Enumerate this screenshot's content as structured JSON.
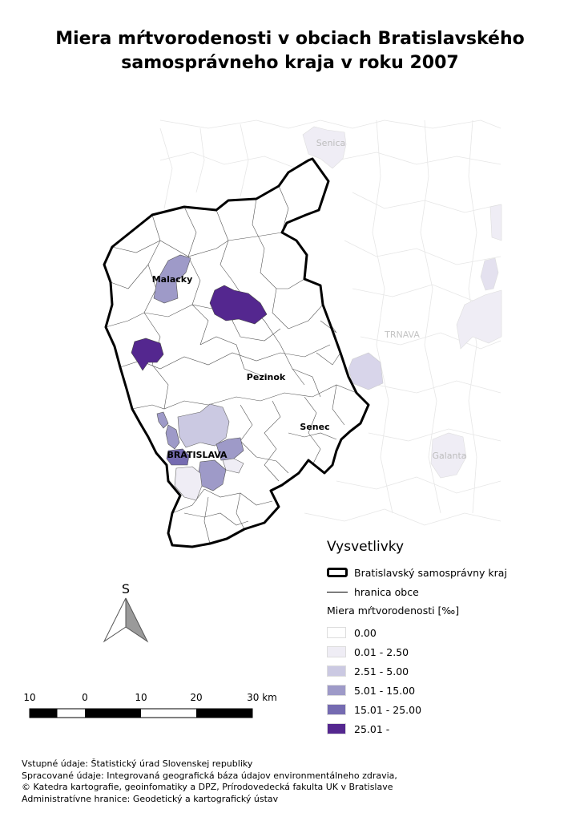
{
  "map": {
    "title_line1": "Miera mŕtvorodenosti v obciach Bratislavského",
    "title_line2": "samosprávneho kraja v roku 2007",
    "labels": {
      "senica": "Senica",
      "trnava": "TRNAVA",
      "galanta": "Galanta",
      "malacky": "Malacky",
      "pezinok": "Pezinok",
      "senec": "Senec",
      "bratislava": "BRATISLAVA"
    },
    "north_arrow_label": "S",
    "scale_bar": {
      "ticks": [
        "10",
        "0",
        "10",
        "20",
        "30 km"
      ]
    },
    "colors": {
      "c0": "#ffffff",
      "c1": "#efedf5",
      "c2": "#cbc9e2",
      "c3": "#9e9ac8",
      "c4": "#756bb1",
      "c5": "#54278f"
    }
  },
  "legend": {
    "title": "Vysvetlivky",
    "region_label": "Bratislavský samosprávny kraj",
    "boundary_label": "hranica obce",
    "subtitle": "Miera mŕtvorodenosti [‰]",
    "classes": [
      {
        "label": "0.00",
        "color": "#ffffff"
      },
      {
        "label": "0.01 - 2.50",
        "color": "#efedf5"
      },
      {
        "label": "2.51 - 5.00",
        "color": "#cbc9e2"
      },
      {
        "label": "5.01 - 15.00",
        "color": "#9e9ac8"
      },
      {
        "label": "15.01 - 25.00",
        "color": "#756bb1"
      },
      {
        "label": "25.01 -",
        "color": "#54278f"
      }
    ]
  },
  "sources": {
    "line1": "Vstupné údaje: Štatistický úrad Slovenskej republiky",
    "line2": "Spracované údaje: Integrovaná geografická báza údajov environmentálneho zdravia,",
    "line3": "© Katedra kartografie, geoinfomatiky a DPZ, Prírodovedecká fakulta UK v Bratislave",
    "line4": "Administratívne hranice: Geodetický a kartografický ústav"
  }
}
